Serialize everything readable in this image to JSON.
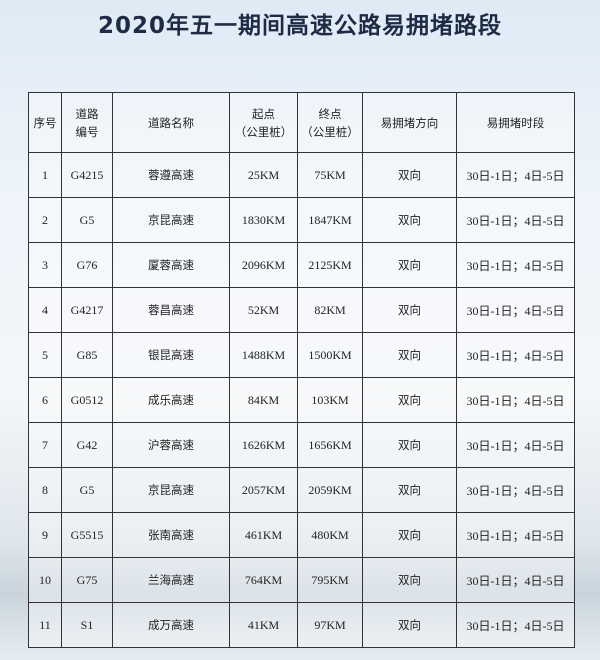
{
  "title": "2020年五一期间高速公路易拥堵路段",
  "table": {
    "headers": [
      {
        "line1": "序号",
        "line2": ""
      },
      {
        "line1": "道路",
        "line2": "编号"
      },
      {
        "line1": "道路名称",
        "line2": ""
      },
      {
        "line1": "起点",
        "line2": "（公里桩）"
      },
      {
        "line1": "终点",
        "line2": "（公里桩）"
      },
      {
        "line1": "易拥堵方向",
        "line2": ""
      },
      {
        "line1": "易拥堵时段",
        "line2": ""
      }
    ],
    "rows": [
      [
        "1",
        "G4215",
        "蓉遵高速",
        "25KM",
        "75KM",
        "双向",
        "30日-1日；4日-5日"
      ],
      [
        "2",
        "G5",
        "京昆高速",
        "1830KM",
        "1847KM",
        "双向",
        "30日-1日；4日-5日"
      ],
      [
        "3",
        "G76",
        "厦蓉高速",
        "2096KM",
        "2125KM",
        "双向",
        "30日-1日；4日-5日"
      ],
      [
        "4",
        "G4217",
        "蓉昌高速",
        "52KM",
        "82KM",
        "双向",
        "30日-1日；4日-5日"
      ],
      [
        "5",
        "G85",
        "银昆高速",
        "1488KM",
        "1500KM",
        "双向",
        "30日-1日；4日-5日"
      ],
      [
        "6",
        "G0512",
        "成乐高速",
        "84KM",
        "103KM",
        "双向",
        "30日-1日；4日-5日"
      ],
      [
        "7",
        "G42",
        "沪蓉高速",
        "1626KM",
        "1656KM",
        "双向",
        "30日-1日；4日-5日"
      ],
      [
        "8",
        "G5",
        "京昆高速",
        "2057KM",
        "2059KM",
        "双向",
        "30日-1日；4日-5日"
      ],
      [
        "9",
        "G5515",
        "张南高速",
        "461KM",
        "480KM",
        "双向",
        "30日-1日；4日-5日"
      ],
      [
        "10",
        "G75",
        "兰海高速",
        "764KM",
        "795KM",
        "双向",
        "30日-1日；4日-5日"
      ],
      [
        "11",
        "S1",
        "成万高速",
        "41KM",
        "97KM",
        "双向",
        "30日-1日；4日-5日"
      ]
    ]
  }
}
